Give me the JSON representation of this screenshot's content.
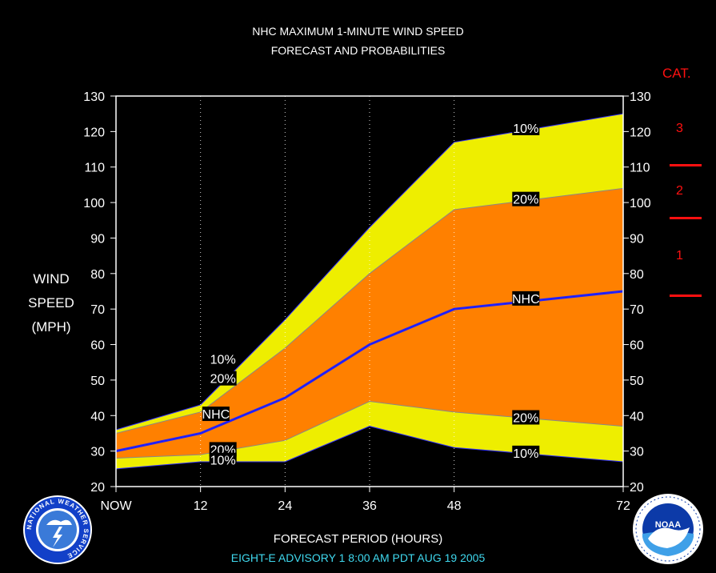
{
  "header": {
    "title_line1": "NHC MAXIMUM 1-MINUTE WIND SPEED",
    "title_line2": "FORECAST AND PROBABILITIES"
  },
  "y_axis": {
    "label_line1": "WIND",
    "label_line2": "SPEED",
    "label_line3": "(MPH)"
  },
  "x_axis": {
    "label": "FORECAST PERIOD (HOURS)"
  },
  "footer": {
    "advisory": "EIGHT-E   ADVISORY  1 8:00  AM  PDT  AUG 19  2005"
  },
  "categories": {
    "title": "CAT.",
    "labels": [
      {
        "text": "3",
        "y": 122
      },
      {
        "text": "2",
        "y": 104
      },
      {
        "text": "1",
        "y": 86
      }
    ],
    "threshold_lines": [
      111,
      96,
      74
    ]
  },
  "colors": {
    "band_10": "#eeee00",
    "band_20": "#ff8000",
    "nhc_line": "#2020ff",
    "category": "#ff1010",
    "advisory_text": "#3fd8ee"
  },
  "logos": {
    "nws": {
      "icon": "nws-logo-icon",
      "ring_text": "NATIONAL WEATHER SERVICE"
    },
    "noaa": {
      "icon": "noaa-logo-icon",
      "center_text": "NOAA"
    }
  },
  "chart_data": {
    "type": "area",
    "xlabel": "FORECAST PERIOD (HOURS)",
    "ylabel": "WIND SPEED (MPH)",
    "xlim": [
      0,
      72
    ],
    "ylim": [
      20,
      130
    ],
    "x_ticks": [
      0,
      12,
      24,
      36,
      48,
      72
    ],
    "x_tick_labels": [
      "NOW",
      "12",
      "24",
      "36",
      "48",
      "72"
    ],
    "y_ticks": [
      20,
      30,
      40,
      50,
      60,
      70,
      80,
      90,
      100,
      110,
      120,
      130
    ],
    "vertical_gridlines": [
      12,
      24,
      36,
      48
    ],
    "series": [
      {
        "name": "10%",
        "role": "upper",
        "x": [
          0,
          12,
          24,
          36,
          48,
          60,
          72
        ],
        "values": [
          36,
          43,
          67,
          93,
          117,
          121,
          125
        ]
      },
      {
        "name": "20%",
        "role": "upper",
        "x": [
          0,
          12,
          24,
          36,
          48,
          60,
          72
        ],
        "values": [
          35,
          41,
          59,
          80,
          98,
          101,
          104
        ]
      },
      {
        "name": "NHC",
        "role": "forecast",
        "x": [
          0,
          12,
          24,
          36,
          48,
          60,
          72
        ],
        "values": [
          30,
          35,
          45,
          60,
          70,
          72.5,
          75
        ]
      },
      {
        "name": "20%",
        "role": "lower",
        "x": [
          0,
          12,
          24,
          36,
          48,
          60,
          72
        ],
        "values": [
          28,
          29,
          33,
          44,
          41,
          39,
          37
        ]
      },
      {
        "name": "10%",
        "role": "lower",
        "x": [
          0,
          12,
          24,
          36,
          48,
          60,
          72
        ],
        "values": [
          25,
          27,
          27,
          37,
          31,
          29,
          27
        ]
      }
    ],
    "labels": [
      {
        "text": "10%",
        "x": 12,
        "y": 56
      },
      {
        "text": "20%",
        "x": 12,
        "y": 50.5
      },
      {
        "text": "NHC",
        "x": 11,
        "y": 40.5
      },
      {
        "text": "20%",
        "x": 12,
        "y": 30.5
      },
      {
        "text": "10%",
        "x": 12,
        "y": 27.5
      },
      {
        "text": "10%",
        "x": 55,
        "y": 121
      },
      {
        "text": "20%",
        "x": 55,
        "y": 101
      },
      {
        "text": "NHC",
        "x": 55,
        "y": 73
      },
      {
        "text": "20%",
        "x": 55,
        "y": 39.5
      },
      {
        "text": "10%",
        "x": 55,
        "y": 29.5
      }
    ]
  }
}
